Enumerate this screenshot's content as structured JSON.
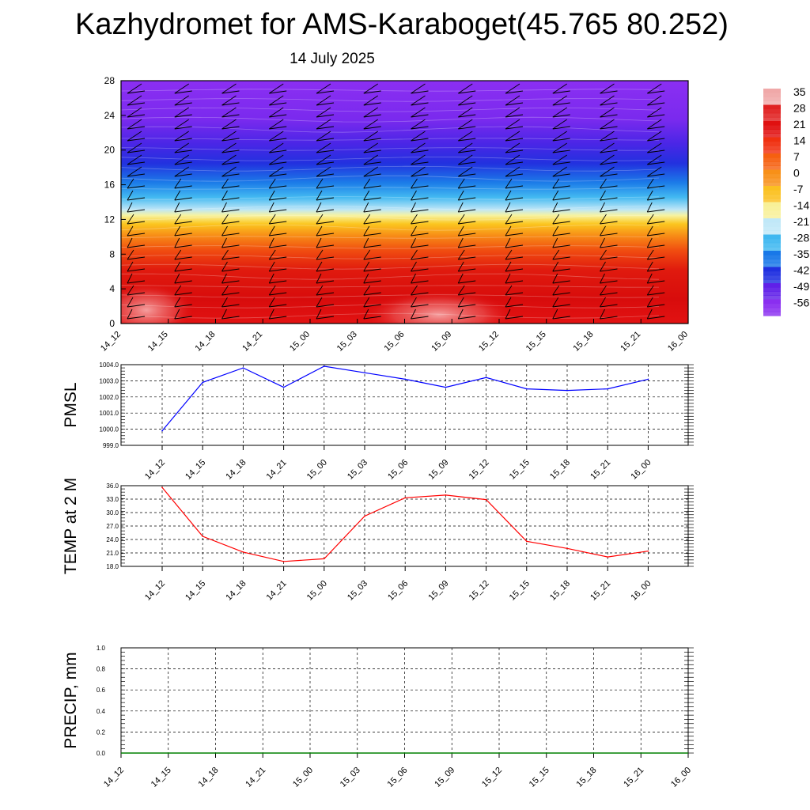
{
  "title": "Kazhydromet for AMS-Karaboget(45.765 80.252)",
  "subtitle": "14 July 2025",
  "chart_data": [
    {
      "type": "heatmap",
      "name": "cross-section",
      "x_ticks": [
        "14_12",
        "14_15",
        "14_18",
        "14_21",
        "15_00",
        "15_03",
        "15_06",
        "15_09",
        "15_12",
        "15_15",
        "15_18",
        "15_21",
        "16_00"
      ],
      "y_ticks": [
        "0",
        "4",
        "8",
        "12",
        "16",
        "20",
        "24",
        "28"
      ],
      "ylim": [
        0,
        28
      ],
      "colorbar_labels": [
        "35",
        "28",
        "21",
        "14",
        "7",
        "0",
        "-7",
        "-14",
        "-21",
        "-28",
        "-35",
        "-42",
        "-49",
        "-56"
      ],
      "colorbar_colors": [
        "#f0a8a8",
        "#e02020",
        "#e01010",
        "#f03010",
        "#f56010",
        "#f89018",
        "#fbc020",
        "#f8f098",
        "#c0e8f8",
        "#40b8f0",
        "#1878e8",
        "#2030e0",
        "#6020e8",
        "#8a2ef0"
      ],
      "grid": false
    },
    {
      "type": "line",
      "ylabel": "PMSL",
      "x": [
        "14_12",
        "14_15",
        "14_18",
        "14_21",
        "15_00",
        "15_03",
        "15_06",
        "15_09",
        "15_12",
        "15_15",
        "15_18",
        "15_21",
        "16_00"
      ],
      "series": [
        {
          "values": [
            999.9,
            1002.9,
            1003.8,
            1002.6,
            1003.9,
            1003.5,
            1003.1,
            1002.6,
            1003.2,
            1002.5,
            1002.4,
            1002.5,
            1003.1
          ],
          "color": "#0000ff"
        }
      ],
      "ylim": [
        999.0,
        1004.0
      ],
      "y_ticks": [
        "999.0",
        "1000.0",
        "1001.0",
        "1002.0",
        "1003.0",
        "1004.0"
      ],
      "grid": true
    },
    {
      "type": "line",
      "ylabel": "TEMP at 2 M",
      "x": [
        "14_12",
        "14_15",
        "14_18",
        "14_21",
        "15_00",
        "15_03",
        "15_06",
        "15_09",
        "15_12",
        "15_15",
        "15_18",
        "15_21",
        "16_00"
      ],
      "series": [
        {
          "values": [
            35.6,
            24.7,
            21.2,
            19.1,
            19.7,
            29.2,
            33.3,
            33.9,
            32.9,
            23.6,
            22.0,
            20.1,
            21.4
          ],
          "color": "#ff0000"
        }
      ],
      "ylim": [
        18.0,
        36.0
      ],
      "y_ticks": [
        "18.0",
        "21.0",
        "24.0",
        "27.0",
        "30.0",
        "33.0",
        "36.0"
      ],
      "grid": true
    },
    {
      "type": "line",
      "ylabel": "PRECIP, mm",
      "x": [
        "14_12",
        "14_15",
        "14_18",
        "14_21",
        "15_00",
        "15_03",
        "15_06",
        "15_09",
        "15_12",
        "15_15",
        "15_18",
        "15_21",
        "16_00"
      ],
      "series": [
        {
          "values": [
            0,
            0,
            0,
            0,
            0,
            0,
            0,
            0,
            0,
            0,
            0,
            0,
            0
          ],
          "color": "#008000"
        }
      ],
      "ylim": [
        0.0,
        1.0
      ],
      "y_ticks": [
        "0.0",
        "0.2",
        "0.4",
        "0.6",
        "0.8",
        "1.0"
      ],
      "grid": true
    }
  ]
}
